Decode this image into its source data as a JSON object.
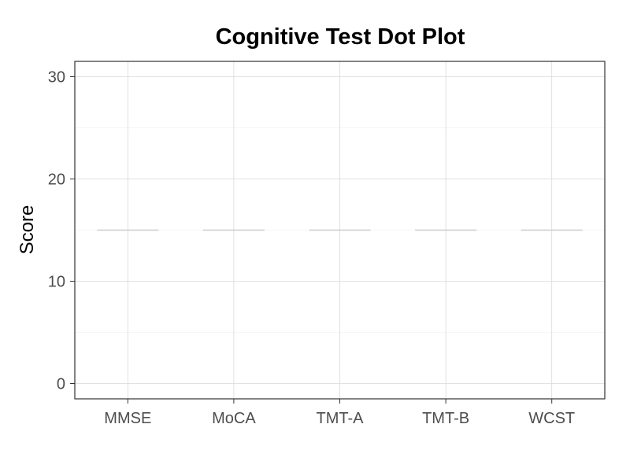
{
  "chart_data": {
    "type": "dot",
    "title": "Cognitive Test Dot Plot",
    "xlabel": "",
    "ylabel": "Score",
    "categories": [
      "MMSE",
      "MoCA",
      "TMT-A",
      "TMT-B",
      "WCST"
    ],
    "values": [
      15,
      15,
      15,
      15,
      15
    ],
    "ylim": [
      -1.5,
      31.5
    ],
    "yticks": [
      0,
      10,
      20,
      30
    ],
    "grid": true,
    "colors": {
      "panel_border": "#333333",
      "grid_major": "#d9d9d9",
      "grid_minor": "#ebebeb",
      "median_line": "#cccccc",
      "tick_text": "#4d4d4d"
    }
  }
}
